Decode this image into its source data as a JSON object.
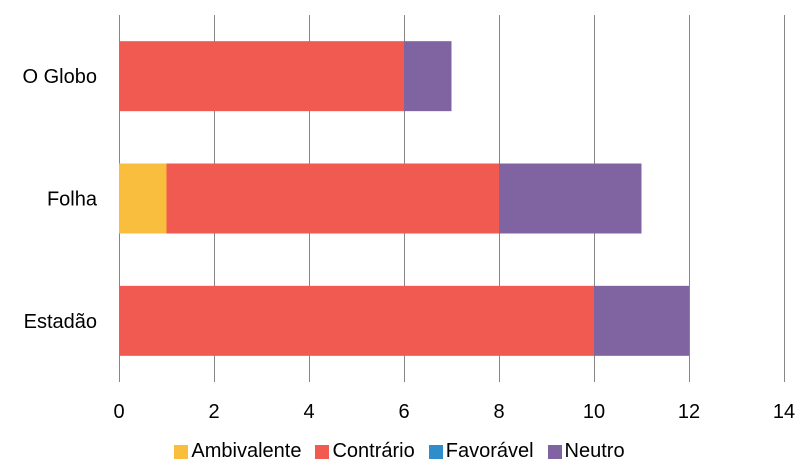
{
  "chart_data": {
    "type": "bar",
    "orientation": "horizontal",
    "stacked": true,
    "categories": [
      "O Globo",
      "Folha",
      "Estadão"
    ],
    "series": [
      {
        "name": "Ambivalente",
        "color": "#F9BE3E",
        "values": [
          0,
          1,
          0
        ]
      },
      {
        "name": "Contrário",
        "color": "#F15A50",
        "values": [
          6,
          7,
          10
        ]
      },
      {
        "name": "Favorável",
        "color": "#2E8EC9",
        "values": [
          0,
          0,
          0
        ]
      },
      {
        "name": "Neutro",
        "color": "#8064A2",
        "values": [
          1,
          3,
          2
        ]
      }
    ],
    "xlim": [
      0,
      14
    ],
    "xticks": [
      0,
      2,
      4,
      6,
      8,
      10,
      12,
      14
    ],
    "grid": "vertical",
    "legend_position": "bottom"
  }
}
